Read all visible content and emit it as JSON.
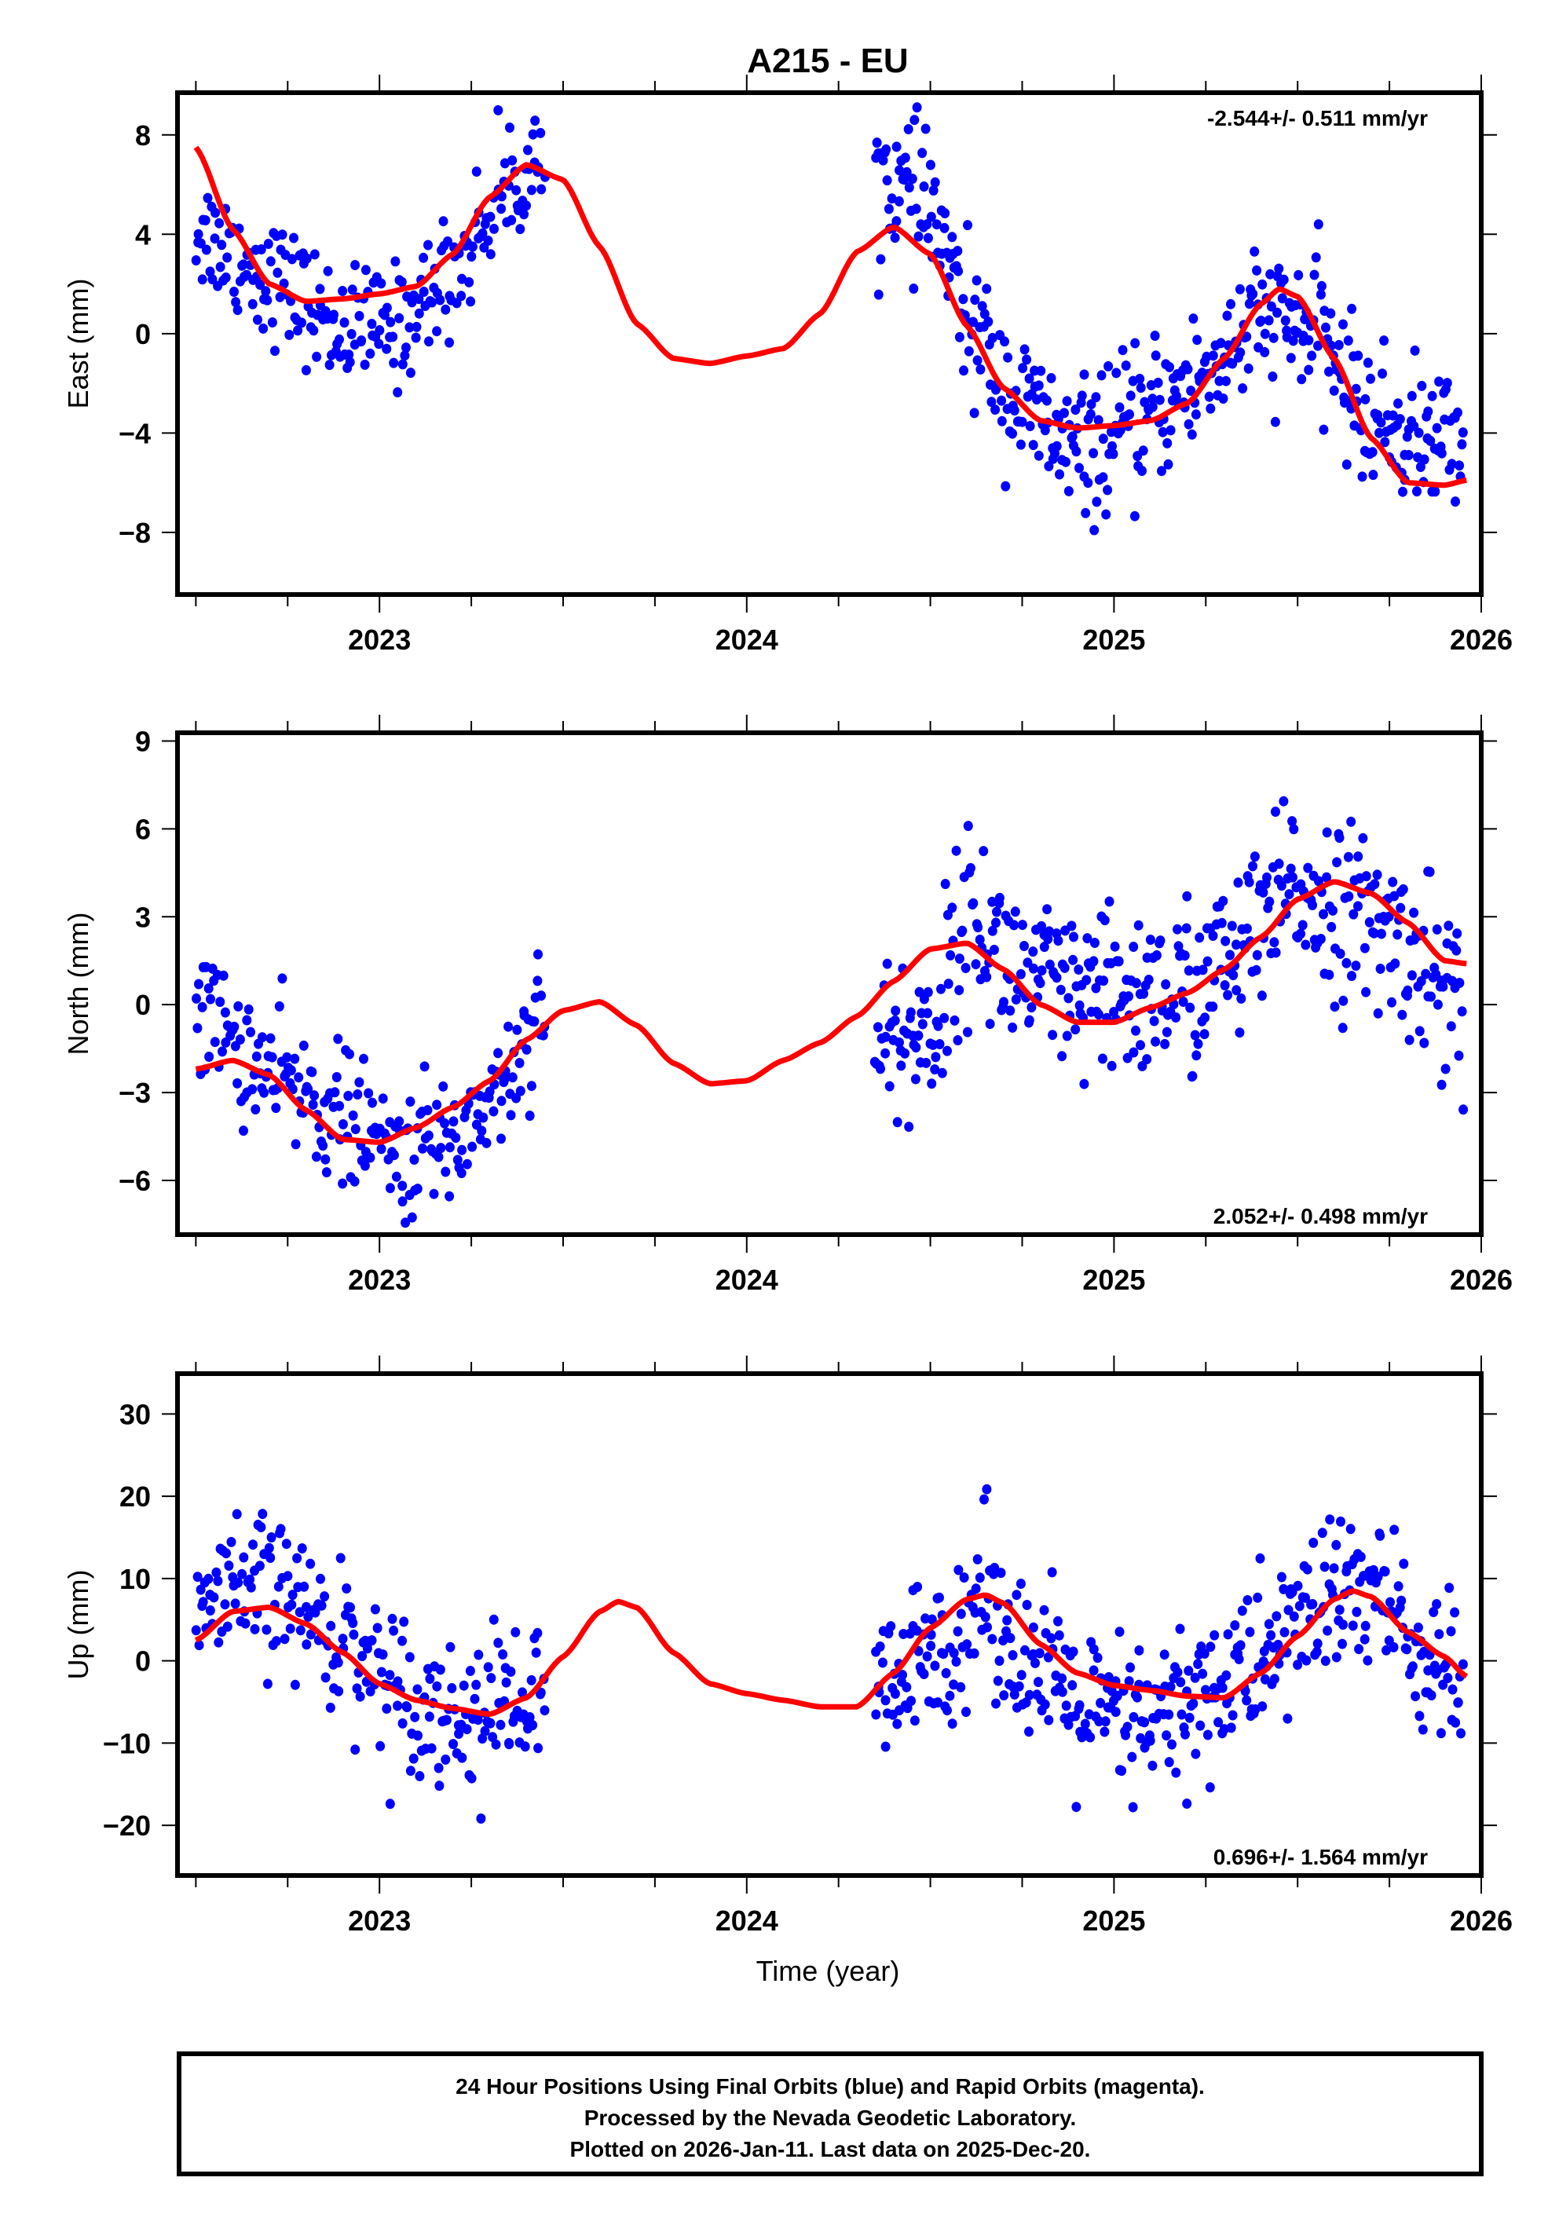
{
  "chart_data": {
    "title": "A215 - EU",
    "xlabel": "Time (year)",
    "xlim": [
      2022.45,
      2026.0
    ],
    "x_ticks": [
      2023,
      2024,
      2025,
      2026
    ],
    "x_minor_step": 0.25,
    "colors": {
      "data": "#0000ff",
      "fit": "#ff0000",
      "frame": "#000000"
    },
    "panels": [
      {
        "name": "east",
        "type": "scatter",
        "ylabel": "East (mm)",
        "ylim": [
          -10.5,
          9.7
        ],
        "y_ticks": [
          8,
          4,
          0,
          -4,
          -8
        ],
        "y_tick_labels": [
          "8",
          "4",
          "0",
          "−4",
          "−8"
        ],
        "rate_label": "-2.544+/- 0.511 mm/yr",
        "rate_position": "top-right",
        "segments": [
          {
            "x": [
              2022.5,
              2023.45
            ],
            "trend": [
              [
                2022.5,
                4.2
              ],
              [
                2022.7,
                2.3
              ],
              [
                2022.9,
                0.2
              ],
              [
                2023.05,
                0.3
              ],
              [
                2023.2,
                2.5
              ],
              [
                2023.35,
                6.0
              ],
              [
                2023.45,
                7.0
              ]
            ],
            "spread": 1.2,
            "n": 230
          },
          {
            "x": [
              2024.35,
              2025.95
            ],
            "trend": [
              [
                2024.35,
                6.5
              ],
              [
                2024.5,
                5.0
              ],
              [
                2024.6,
                0.5
              ],
              [
                2024.75,
                -3.0
              ],
              [
                2024.9,
                -4.8
              ],
              [
                2025.05,
                -3.8
              ],
              [
                2025.2,
                -2.2
              ],
              [
                2025.4,
                0.5
              ],
              [
                2025.55,
                0.2
              ],
              [
                2025.7,
                -3.5
              ],
              [
                2025.85,
                -4.3
              ],
              [
                2025.95,
                -4.2
              ]
            ],
            "spread": 1.4,
            "n": 430
          }
        ],
        "fit": [
          [
            2022.5,
            7.5
          ],
          [
            2022.6,
            4.2
          ],
          [
            2022.7,
            2.0
          ],
          [
            2022.8,
            1.3
          ],
          [
            2022.9,
            1.4
          ],
          [
            2023.0,
            1.6
          ],
          [
            2023.1,
            1.9
          ],
          [
            2023.2,
            3.2
          ],
          [
            2023.3,
            5.5
          ],
          [
            2023.4,
            6.8
          ],
          [
            2023.5,
            6.2
          ],
          [
            2023.6,
            3.5
          ],
          [
            2023.7,
            0.4
          ],
          [
            2023.8,
            -1.0
          ],
          [
            2023.9,
            -1.2
          ],
          [
            2024.0,
            -0.9
          ],
          [
            2024.1,
            -0.6
          ],
          [
            2024.2,
            0.8
          ],
          [
            2024.3,
            3.3
          ],
          [
            2024.4,
            4.3
          ],
          [
            2024.5,
            3.2
          ],
          [
            2024.6,
            0.3
          ],
          [
            2024.7,
            -2.2
          ],
          [
            2024.8,
            -3.5
          ],
          [
            2024.9,
            -3.8
          ],
          [
            2025.0,
            -3.7
          ],
          [
            2025.1,
            -3.5
          ],
          [
            2025.2,
            -2.8
          ],
          [
            2025.3,
            -1.0
          ],
          [
            2025.4,
            1.2
          ],
          [
            2025.45,
            1.8
          ],
          [
            2025.5,
            1.5
          ],
          [
            2025.6,
            -1.0
          ],
          [
            2025.7,
            -4.2
          ],
          [
            2025.8,
            -6.0
          ],
          [
            2025.9,
            -6.1
          ],
          [
            2025.96,
            -5.9
          ]
        ]
      },
      {
        "name": "north",
        "type": "scatter",
        "ylabel": "North (mm)",
        "ylim": [
          -7.85,
          9.28
        ],
        "y_ticks": [
          9,
          6,
          3,
          0,
          -3,
          -6
        ],
        "y_tick_labels": [
          "9",
          "6",
          "3",
          "0",
          "−3",
          "−6"
        ],
        "rate_label": "2.052+/- 0.498 mm/yr",
        "rate_position": "bottom-right",
        "segments": [
          {
            "x": [
              2022.5,
              2023.45
            ],
            "trend": [
              [
                2022.5,
                0.0
              ],
              [
                2022.7,
                -2.4
              ],
              [
                2022.9,
                -3.8
              ],
              [
                2023.05,
                -5.2
              ],
              [
                2023.2,
                -4.6
              ],
              [
                2023.35,
                -2.5
              ],
              [
                2023.45,
                0.5
              ]
            ],
            "spread": 1.1,
            "n": 230
          },
          {
            "x": [
              2024.35,
              2025.95
            ],
            "trend": [
              [
                2024.35,
                -1.5
              ],
              [
                2024.5,
                -1.0
              ],
              [
                2024.6,
                3.0
              ],
              [
                2024.75,
                1.0
              ],
              [
                2024.9,
                0.0
              ],
              [
                2025.05,
                0.3
              ],
              [
                2025.2,
                0.5
              ],
              [
                2025.35,
                1.8
              ],
              [
                2025.5,
                4.0
              ],
              [
                2025.65,
                3.0
              ],
              [
                2025.8,
                2.0
              ],
              [
                2025.95,
                0.0
              ]
            ],
            "spread": 1.5,
            "n": 430
          }
        ],
        "fit": [
          [
            2022.5,
            -2.2
          ],
          [
            2022.6,
            -1.9
          ],
          [
            2022.7,
            -2.4
          ],
          [
            2022.8,
            -3.6
          ],
          [
            2022.9,
            -4.6
          ],
          [
            2023.0,
            -4.7
          ],
          [
            2023.1,
            -4.2
          ],
          [
            2023.2,
            -3.5
          ],
          [
            2023.3,
            -2.6
          ],
          [
            2023.4,
            -1.2
          ],
          [
            2023.5,
            -0.2
          ],
          [
            2023.6,
            0.1
          ],
          [
            2023.7,
            -0.7
          ],
          [
            2023.8,
            -2.0
          ],
          [
            2023.9,
            -2.7
          ],
          [
            2024.0,
            -2.6
          ],
          [
            2024.1,
            -1.9
          ],
          [
            2024.2,
            -1.3
          ],
          [
            2024.3,
            -0.4
          ],
          [
            2024.4,
            0.8
          ],
          [
            2024.5,
            1.9
          ],
          [
            2024.6,
            2.1
          ],
          [
            2024.7,
            1.2
          ],
          [
            2024.8,
            0.0
          ],
          [
            2024.9,
            -0.6
          ],
          [
            2025.0,
            -0.6
          ],
          [
            2025.1,
            -0.1
          ],
          [
            2025.2,
            0.4
          ],
          [
            2025.3,
            1.2
          ],
          [
            2025.4,
            2.3
          ],
          [
            2025.5,
            3.6
          ],
          [
            2025.6,
            4.2
          ],
          [
            2025.7,
            3.8
          ],
          [
            2025.8,
            2.8
          ],
          [
            2025.9,
            1.5
          ],
          [
            2025.96,
            1.4
          ]
        ]
      },
      {
        "name": "up",
        "type": "scatter",
        "ylabel": "Up (mm)",
        "ylim": [
          -26.1,
          34.9
        ],
        "y_ticks": [
          30,
          20,
          10,
          0,
          -10,
          -20
        ],
        "y_tick_labels": [
          "30",
          "20",
          "10",
          "0",
          "−10",
          "−20"
        ],
        "rate_label": "0.696+/- 1.564 mm/yr",
        "rate_position": "bottom-right",
        "segments": [
          {
            "x": [
              2022.5,
              2023.45
            ],
            "trend": [
              [
                2022.5,
                6.0
              ],
              [
                2022.7,
                9.0
              ],
              [
                2022.9,
                3.0
              ],
              [
                2023.05,
                -3.0
              ],
              [
                2023.2,
                -7.0
              ],
              [
                2023.35,
                -5.0
              ],
              [
                2023.45,
                -5.0
              ]
            ],
            "spread": 4.5,
            "n": 230
          },
          {
            "x": [
              2024.35,
              2025.95
            ],
            "trend": [
              [
                2024.35,
                -5.0
              ],
              [
                2024.5,
                0.0
              ],
              [
                2024.65,
                8.0
              ],
              [
                2024.8,
                -2.0
              ],
              [
                2024.95,
                -7.0
              ],
              [
                2025.1,
                -8.0
              ],
              [
                2025.25,
                -4.0
              ],
              [
                2025.4,
                0.0
              ],
              [
                2025.55,
                7.0
              ],
              [
                2025.7,
                9.0
              ],
              [
                2025.85,
                0.0
              ],
              [
                2025.95,
                -3.0
              ]
            ],
            "spread": 5.0,
            "n": 430
          }
        ],
        "fit": [
          [
            2022.5,
            2.5
          ],
          [
            2022.6,
            6.0
          ],
          [
            2022.7,
            6.5
          ],
          [
            2022.8,
            4.5
          ],
          [
            2022.9,
            1.0
          ],
          [
            2023.0,
            -2.8
          ],
          [
            2023.1,
            -4.8
          ],
          [
            2023.2,
            -5.8
          ],
          [
            2023.3,
            -6.5
          ],
          [
            2023.4,
            -4.5
          ],
          [
            2023.5,
            0.5
          ],
          [
            2023.6,
            6.0
          ],
          [
            2023.65,
            7.2
          ],
          [
            2023.7,
            6.5
          ],
          [
            2023.8,
            1.0
          ],
          [
            2023.9,
            -2.8
          ],
          [
            2024.0,
            -4.0
          ],
          [
            2024.1,
            -4.8
          ],
          [
            2024.2,
            -5.6
          ],
          [
            2024.3,
            -5.6
          ],
          [
            2024.4,
            -1.5
          ],
          [
            2024.5,
            4.0
          ],
          [
            2024.6,
            7.5
          ],
          [
            2024.65,
            8.0
          ],
          [
            2024.7,
            7.0
          ],
          [
            2024.8,
            2.0
          ],
          [
            2024.9,
            -1.5
          ],
          [
            2025.0,
            -3.0
          ],
          [
            2025.1,
            -3.6
          ],
          [
            2025.2,
            -4.3
          ],
          [
            2025.3,
            -4.5
          ],
          [
            2025.4,
            -1.5
          ],
          [
            2025.5,
            3.0
          ],
          [
            2025.6,
            7.5
          ],
          [
            2025.65,
            8.5
          ],
          [
            2025.7,
            7.8
          ],
          [
            2025.8,
            3.5
          ],
          [
            2025.9,
            0.5
          ],
          [
            2025.96,
            -1.9
          ]
        ]
      }
    ]
  },
  "footer": {
    "lines": [
      "24 Hour Positions Using Final Orbits (blue) and Rapid Orbits (magenta).",
      "Processed by the Nevada Geodetic Laboratory.",
      "Plotted on 2026-Jan-11. Last data on 2025-Dec-20."
    ]
  }
}
